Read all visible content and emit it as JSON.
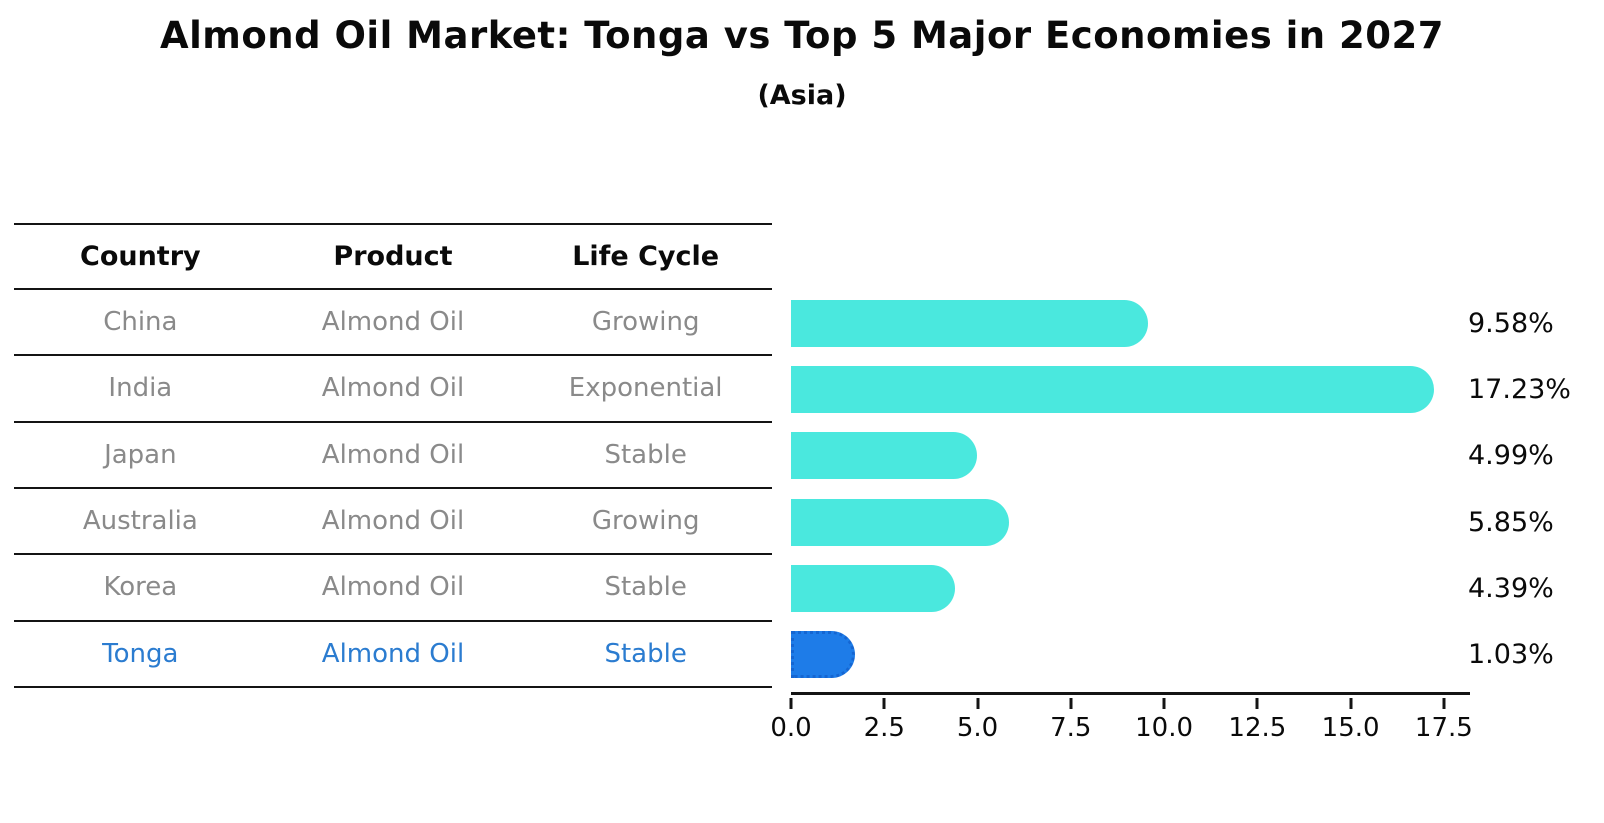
{
  "chart_data": {
    "type": "bar",
    "orientation": "horizontal",
    "title": "Almond Oil Market: Tonga vs Top 5 Major Economies in 2027",
    "subtitle": "(Asia)",
    "categories": [
      "China",
      "India",
      "Japan",
      "Australia",
      "Korea",
      "Tonga"
    ],
    "values": [
      9.58,
      17.23,
      4.99,
      5.85,
      4.39,
      1.03
    ],
    "value_labels": [
      "9.58%",
      "17.23%",
      "4.99%",
      "5.85%",
      "4.39%",
      "1.03%"
    ],
    "xticks": [
      0.0,
      2.5,
      5.0,
      7.5,
      10.0,
      12.5,
      15.0,
      17.5
    ],
    "xtick_labels": [
      "0.0",
      "2.5",
      "5.0",
      "7.5",
      "10.0",
      "12.5",
      "15.0",
      "17.5"
    ],
    "xlim": [
      0,
      18.2
    ],
    "grid": false,
    "legend": false,
    "bar_color": "#4ae8de",
    "highlight_index": 5,
    "highlight_color": "#1e7ce8"
  },
  "table": {
    "columns": [
      "Country",
      "Product",
      "Life Cycle"
    ],
    "rows": [
      {
        "country": "China",
        "product": "Almond Oil",
        "life_cycle": "Growing",
        "highlight": false
      },
      {
        "country": "India",
        "product": "Almond Oil",
        "life_cycle": "Exponential",
        "highlight": false
      },
      {
        "country": "Japan",
        "product": "Almond Oil",
        "life_cycle": "Stable",
        "highlight": false
      },
      {
        "country": "Australia",
        "product": "Almond Oil",
        "life_cycle": "Growing",
        "highlight": false
      },
      {
        "country": "Korea",
        "product": "Almond Oil",
        "life_cycle": "Stable",
        "highlight": false
      },
      {
        "country": "Tonga",
        "product": "Almond Oil",
        "life_cycle": "Stable",
        "highlight": true
      }
    ],
    "text_color": "#8a8a8a",
    "highlight_text_color": "#2b7cd0"
  }
}
